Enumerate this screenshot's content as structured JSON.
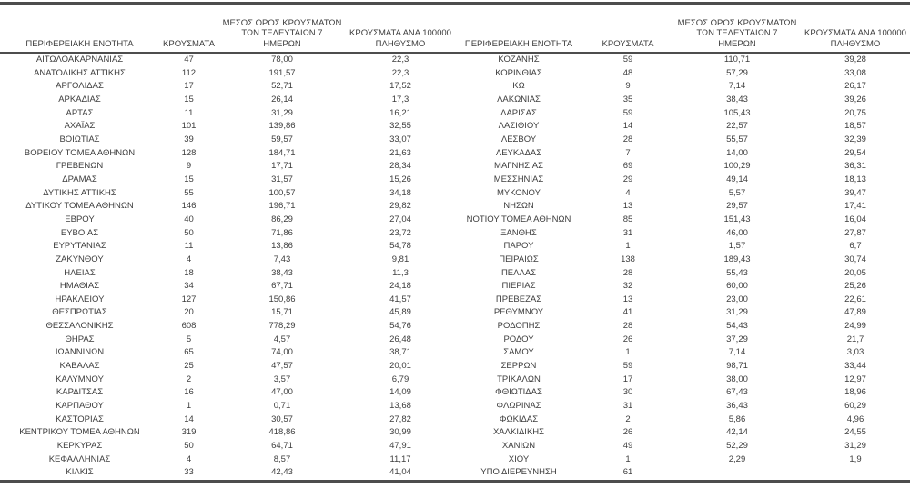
{
  "table": {
    "headers": {
      "region": "ΠΕΡΙΦΕΡΕΙΑΚΗ ΕΝΟΤΗΤΑ",
      "cases": "ΚΡΟΥΣΜΑΤΑ",
      "avg7": "ΜΕΣΟΣ ΟΡΟΣ ΚΡΟΥΣΜΑΤΩΝ\nΤΩΝ ΤΕΛΕΥΤΑΙΩΝ 7\nΗΜΕΡΩΝ",
      "per100k": "ΚΡΟΥΣΜΑΤΑ ΑΝΑ 100000\nΠΛΗΘΥΣΜΟ"
    },
    "left_rows": [
      [
        "ΑΙΤΩΛΟΑΚΑΡΝΑΝΙΑΣ",
        "47",
        "78,00",
        "22,3"
      ],
      [
        "ΑΝΑΤΟΛΙΚΗΣ ΑΤΤΙΚΗΣ",
        "112",
        "191,57",
        "22,3"
      ],
      [
        "ΑΡΓΟΛΙΔΑΣ",
        "17",
        "52,71",
        "17,52"
      ],
      [
        "ΑΡΚΑΔΙΑΣ",
        "15",
        "26,14",
        "17,3"
      ],
      [
        "ΑΡΤΑΣ",
        "11",
        "31,29",
        "16,21"
      ],
      [
        "ΑΧΑΪΑΣ",
        "101",
        "139,86",
        "32,55"
      ],
      [
        "ΒΟΙΩΤΙΑΣ",
        "39",
        "59,57",
        "33,07"
      ],
      [
        "ΒΟΡΕΙΟΥ ΤΟΜΕΑ ΑΘΗΝΩΝ",
        "128",
        "184,71",
        "21,63"
      ],
      [
        "ΓΡΕΒΕΝΩΝ",
        "9",
        "17,71",
        "28,34"
      ],
      [
        "ΔΡΑΜΑΣ",
        "15",
        "31,57",
        "15,26"
      ],
      [
        "ΔΥΤΙΚΗΣ ΑΤΤΙΚΗΣ",
        "55",
        "100,57",
        "34,18"
      ],
      [
        "ΔΥΤΙΚΟΥ ΤΟΜΕΑ ΑΘΗΝΩΝ",
        "146",
        "196,71",
        "29,82"
      ],
      [
        "ΕΒΡΟΥ",
        "40",
        "86,29",
        "27,04"
      ],
      [
        "ΕΥΒΟΙΑΣ",
        "50",
        "71,86",
        "23,72"
      ],
      [
        "ΕΥΡΥΤΑΝΙΑΣ",
        "11",
        "13,86",
        "54,78"
      ],
      [
        "ΖΑΚΥΝΘΟΥ",
        "4",
        "7,43",
        "9,81"
      ],
      [
        "ΗΛΕΙΑΣ",
        "18",
        "38,43",
        "11,3"
      ],
      [
        "ΗΜΑΘΙΑΣ",
        "34",
        "67,71",
        "24,18"
      ],
      [
        "ΗΡΑΚΛΕΙΟΥ",
        "127",
        "150,86",
        "41,57"
      ],
      [
        "ΘΕΣΠΡΩΤΙΑΣ",
        "20",
        "15,71",
        "45,89"
      ],
      [
        "ΘΕΣΣΑΛΟΝΙΚΗΣ",
        "608",
        "778,29",
        "54,76"
      ],
      [
        "ΘΗΡΑΣ",
        "5",
        "4,57",
        "26,48"
      ],
      [
        "ΙΩΑΝΝΙΝΩΝ",
        "65",
        "74,00",
        "38,71"
      ],
      [
        "ΚΑΒΑΛΑΣ",
        "25",
        "47,57",
        "20,01"
      ],
      [
        "ΚΑΛΥΜΝΟΥ",
        "2",
        "3,57",
        "6,79"
      ],
      [
        "ΚΑΡΔΙΤΣΑΣ",
        "16",
        "47,00",
        "14,09"
      ],
      [
        "ΚΑΡΠΑΘΟΥ",
        "1",
        "0,71",
        "13,68"
      ],
      [
        "ΚΑΣΤΟΡΙΑΣ",
        "14",
        "30,57",
        "27,82"
      ],
      [
        "ΚΕΝΤΡΙΚΟΥ ΤΟΜΕΑ ΑΘΗΝΩΝ",
        "319",
        "418,86",
        "30,99"
      ],
      [
        "ΚΕΡΚΥΡΑΣ",
        "50",
        "64,71",
        "47,91"
      ],
      [
        "ΚΕΦΑΛΛΗΝΙΑΣ",
        "4",
        "8,57",
        "11,17"
      ],
      [
        "ΚΙΛΚΙΣ",
        "33",
        "42,43",
        "41,04"
      ]
    ],
    "right_rows": [
      [
        "ΚΟΖΑΝΗΣ",
        "59",
        "110,71",
        "39,28"
      ],
      [
        "ΚΟΡΙΝΘΙΑΣ",
        "48",
        "57,29",
        "33,08"
      ],
      [
        "ΚΩ",
        "9",
        "7,14",
        "26,17"
      ],
      [
        "ΛΑΚΩΝΙΑΣ",
        "35",
        "38,43",
        "39,26"
      ],
      [
        "ΛΑΡΙΣΑΣ",
        "59",
        "105,43",
        "20,75"
      ],
      [
        "ΛΑΣΙΘΙΟΥ",
        "14",
        "22,57",
        "18,57"
      ],
      [
        "ΛΕΣΒΟΥ",
        "28",
        "55,57",
        "32,39"
      ],
      [
        "ΛΕΥΚΑΔΑΣ",
        "7",
        "14,00",
        "29,54"
      ],
      [
        "ΜΑΓΝΗΣΙΑΣ",
        "69",
        "100,29",
        "36,31"
      ],
      [
        "ΜΕΣΣΗΝΙΑΣ",
        "29",
        "49,14",
        "18,13"
      ],
      [
        "ΜΥΚΟΝΟΥ",
        "4",
        "5,57",
        "39,47"
      ],
      [
        "ΝΗΣΩΝ",
        "13",
        "29,57",
        "17,41"
      ],
      [
        "ΝΟΤΙΟΥ ΤΟΜΕΑ ΑΘΗΝΩΝ",
        "85",
        "151,43",
        "16,04"
      ],
      [
        "ΞΑΝΘΗΣ",
        "31",
        "46,00",
        "27,87"
      ],
      [
        "ΠΑΡΟΥ",
        "1",
        "1,57",
        "6,7"
      ],
      [
        "ΠΕΙΡΑΙΩΣ",
        "138",
        "189,43",
        "30,74"
      ],
      [
        "ΠΕΛΛΑΣ",
        "28",
        "55,43",
        "20,05"
      ],
      [
        "ΠΙΕΡΙΑΣ",
        "32",
        "60,00",
        "25,26"
      ],
      [
        "ΠΡΕΒΕΖΑΣ",
        "13",
        "23,00",
        "22,61"
      ],
      [
        "ΡΕΘΥΜΝΟΥ",
        "41",
        "31,29",
        "47,89"
      ],
      [
        "ΡΟΔΟΠΗΣ",
        "28",
        "54,43",
        "24,99"
      ],
      [
        "ΡΟΔΟΥ",
        "26",
        "37,29",
        "21,7"
      ],
      [
        "ΣΑΜΟΥ",
        "1",
        "7,14",
        "3,03"
      ],
      [
        "ΣΕΡΡΩΝ",
        "59",
        "98,71",
        "33,44"
      ],
      [
        "ΤΡΙΚΑΛΩΝ",
        "17",
        "38,00",
        "12,97"
      ],
      [
        "ΦΘΙΩΤΙΔΑΣ",
        "30",
        "67,43",
        "18,96"
      ],
      [
        "ΦΛΩΡΙΝΑΣ",
        "31",
        "36,43",
        "60,29"
      ],
      [
        "ΦΩΚΙΔΑΣ",
        "2",
        "5,86",
        "4,96"
      ],
      [
        "ΧΑΛΚΙΔΙΚΗΣ",
        "26",
        "42,14",
        "24,55"
      ],
      [
        "ΧΑΝΙΩΝ",
        "49",
        "52,29",
        "31,29"
      ],
      [
        "ΧΙΟΥ",
        "1",
        "2,29",
        "1,9"
      ],
      [
        "ΥΠΟ ΔΙΕΡΕΥΝΗΣΗ",
        "61",
        "",
        ""
      ]
    ],
    "colors": {
      "text": "#3d3d3d",
      "rule": "#4d4d4d",
      "background": "#ffffff"
    }
  }
}
